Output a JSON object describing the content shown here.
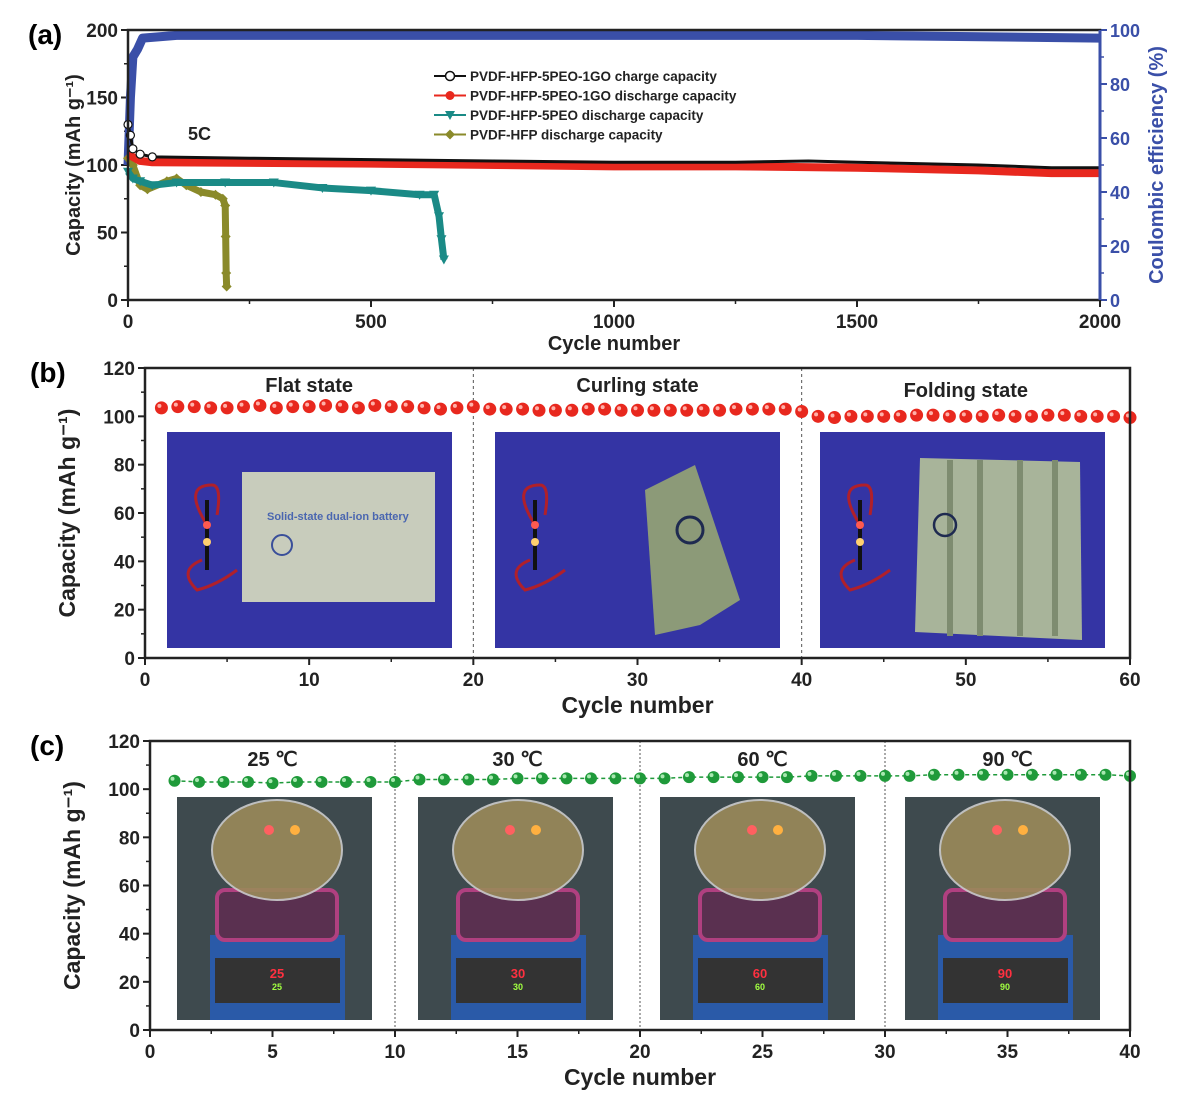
{
  "chart_data": [
    {
      "panel_label": "(a)",
      "type": "line",
      "xlabel": "Cycle number",
      "ylabel": "Capacity (mAh g⁻¹)",
      "y2label": "Coulombic efficiency (%)",
      "xlim": [
        0,
        2000
      ],
      "ylim": [
        0,
        200
      ],
      "y2lim": [
        0,
        100
      ],
      "xticks": [
        0,
        500,
        1000,
        1500,
        2000
      ],
      "yticks": [
        0,
        50,
        100,
        150,
        200
      ],
      "y2ticks": [
        0,
        20,
        40,
        60,
        80,
        100
      ],
      "annotation": "5C",
      "legend_placement": "top-center",
      "axis2_color": "#3a4fa8",
      "series": [
        {
          "name": "PVDF-HFP-5PEO-1GO charge capacity",
          "color": "#111111",
          "marker": "open-circle",
          "axis": "left",
          "points": [
            [
              0,
              130
            ],
            [
              5,
              122
            ],
            [
              10,
              112
            ],
            [
              25,
              108
            ],
            [
              50,
              106
            ],
            [
              250,
              105
            ],
            [
              500,
              104
            ],
            [
              750,
              103
            ],
            [
              1000,
              102
            ],
            [
              1250,
              102
            ],
            [
              1400,
              103
            ],
            [
              1500,
              102
            ],
            [
              1750,
              100
            ],
            [
              1900,
              98
            ],
            [
              2000,
              98
            ]
          ]
        },
        {
          "name": "PVDF-HFP-5PEO-1GO discharge capacity",
          "color": "#e8281e",
          "marker": "filled-circle",
          "axis": "left",
          "points": [
            [
              0,
              108
            ],
            [
              25,
              103
            ],
            [
              50,
              102
            ],
            [
              500,
              101
            ],
            [
              1000,
              99
            ],
            [
              1250,
              99
            ],
            [
              1500,
              98
            ],
            [
              1750,
              96
            ],
            [
              1900,
              94
            ],
            [
              2000,
              94
            ]
          ]
        },
        {
          "name": "PVDF-HFP-5PEO discharge capacity",
          "color": "#1a8a86",
          "marker": "down-triangle",
          "axis": "left",
          "points": [
            [
              0,
              95
            ],
            [
              10,
              90
            ],
            [
              25,
              88
            ],
            [
              50,
              85
            ],
            [
              100,
              87
            ],
            [
              200,
              87
            ],
            [
              300,
              87
            ],
            [
              400,
              83
            ],
            [
              500,
              81
            ],
            [
              600,
              78
            ],
            [
              630,
              78
            ],
            [
              640,
              62
            ],
            [
              645,
              45
            ],
            [
              650,
              30
            ]
          ]
        },
        {
          "name": "PVDF-HFP discharge capacity",
          "color": "#8a8a2a",
          "marker": "diamond",
          "axis": "left",
          "points": [
            [
              0,
              105
            ],
            [
              10,
              100
            ],
            [
              25,
              85
            ],
            [
              40,
              82
            ],
            [
              80,
              88
            ],
            [
              100,
              90
            ],
            [
              120,
              85
            ],
            [
              150,
              80
            ],
            [
              180,
              78
            ],
            [
              195,
              75
            ],
            [
              200,
              70
            ],
            [
              201,
              47
            ],
            [
              202,
              20
            ],
            [
              203,
              10
            ]
          ]
        },
        {
          "color": "#3a4fa8",
          "axis": "right",
          "points": [
            [
              0,
              50
            ],
            [
              5,
              75
            ],
            [
              10,
              90
            ],
            [
              20,
              93
            ],
            [
              30,
              97
            ],
            [
              100,
              98
            ],
            [
              500,
              98
            ],
            [
              1000,
              98
            ],
            [
              1400,
              98
            ],
            [
              1500,
              98
            ],
            [
              2000,
              97
            ]
          ]
        }
      ]
    },
    {
      "panel_label": "(b)",
      "type": "scatter",
      "xlabel": "Cycle number",
      "ylabel": "Capacity (mAh g⁻¹)",
      "xlim": [
        0,
        60
      ],
      "ylim": [
        0,
        120
      ],
      "xticks": [
        0,
        10,
        20,
        30,
        40,
        50,
        60
      ],
      "yticks": [
        0,
        20,
        40,
        60,
        80,
        100,
        120
      ],
      "dividers": [
        20,
        40
      ],
      "color": "#e8281e",
      "sections": [
        "Flat state",
        "Curling state",
        "Folding state"
      ],
      "photo_text": "Solid-state dual-ion battery",
      "values": [
        103.5,
        104,
        104,
        103.5,
        103.5,
        104,
        104.5,
        103.5,
        104,
        104,
        104.5,
        104,
        103.5,
        104.5,
        104,
        104,
        103.5,
        103,
        103.5,
        104,
        103,
        103,
        103,
        102.5,
        102.5,
        102.5,
        103,
        103,
        102.5,
        102.5,
        102.5,
        102.5,
        102.5,
        102.5,
        102.5,
        103,
        103,
        103,
        103,
        102,
        100,
        99.5,
        100,
        100,
        100,
        100,
        100.5,
        100.5,
        100,
        100,
        100,
        100.5,
        100,
        100,
        100.5,
        100.5,
        100,
        100,
        100,
        99.5
      ]
    },
    {
      "panel_label": "(c)",
      "type": "line",
      "xlabel": "Cycle number",
      "ylabel": "Capacity (mAh g⁻¹)",
      "xlim": [
        0,
        40
      ],
      "ylim": [
        0,
        120
      ],
      "xticks": [
        0,
        5,
        10,
        15,
        20,
        25,
        30,
        35,
        40
      ],
      "yticks": [
        0,
        20,
        40,
        60,
        80,
        100,
        120
      ],
      "dividers": [
        10,
        20,
        30
      ],
      "color": "#1f9a3a",
      "sections": [
        "25 ℃",
        "30 ℃",
        "60 ℃",
        "90 ℃"
      ],
      "display_readouts": [
        "25",
        "30",
        "60",
        "90"
      ],
      "values": [
        103.5,
        103,
        103,
        103,
        102.5,
        103,
        103,
        103,
        103,
        103,
        104,
        104,
        104,
        104,
        104.5,
        104.5,
        104.5,
        104.5,
        104.5,
        104.5,
        104.5,
        105,
        105,
        105,
        105,
        105,
        105.5,
        105.5,
        105.5,
        105.5,
        105.5,
        106,
        106,
        106,
        106,
        106,
        106,
        106,
        106,
        105.5
      ]
    }
  ]
}
